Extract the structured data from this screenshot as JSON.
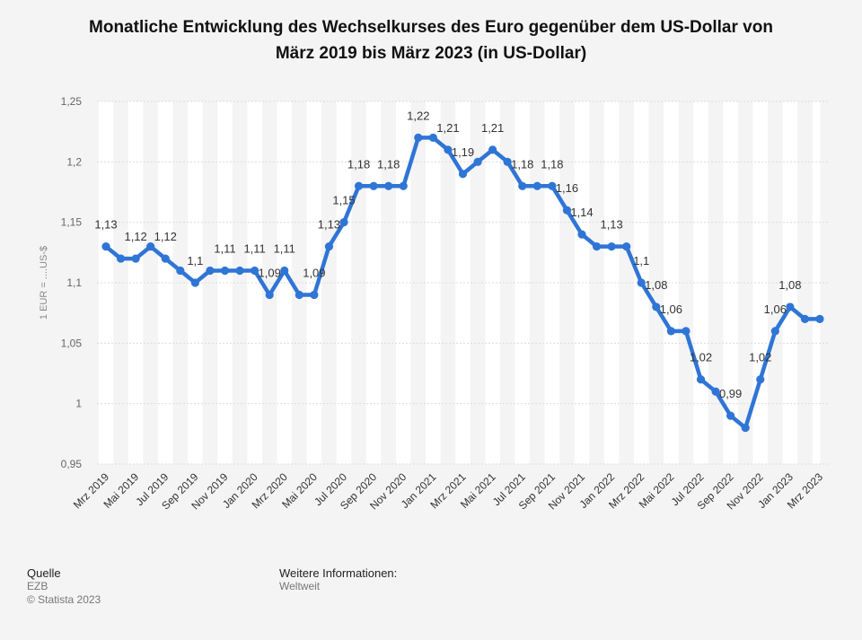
{
  "title": {
    "line1": "Monatliche Entwicklung des Wechselkurses des Euro gegenüber dem US-Dollar von",
    "line2": "März 2019 bis März 2023 (in US-Dollar)"
  },
  "footer": {
    "source_heading": "Quelle",
    "source": "EZB",
    "copyright": "© Statista 2023",
    "info_heading": "Weitere Informationen:",
    "info": "Weltweit"
  },
  "colors": {
    "line": "#2f75d6",
    "band": "#ffffff",
    "grid": "#dcdcdc"
  },
  "chart_data": {
    "type": "line",
    "ylabel": "1 EUR = ....US-$",
    "ylim": [
      0.95,
      1.25
    ],
    "yticks": [
      {
        "value": 0.95,
        "label": "0,95"
      },
      {
        "value": 1.0,
        "label": "1"
      },
      {
        "value": 1.05,
        "label": "1,05"
      },
      {
        "value": 1.1,
        "label": "1,1"
      },
      {
        "value": 1.15,
        "label": "1,15"
      },
      {
        "value": 1.2,
        "label": "1,2"
      },
      {
        "value": 1.25,
        "label": "1,25"
      }
    ],
    "x": [
      "Mrz 2019",
      "Apr 2019",
      "Mai 2019",
      "Jun 2019",
      "Jul 2019",
      "Aug 2019",
      "Sep 2019",
      "Okt 2019",
      "Nov 2019",
      "Dez 2019",
      "Jan 2020",
      "Feb 2020",
      "Mrz 2020",
      "Apr 2020",
      "Mai 2020",
      "Jun 2020",
      "Jul 2020",
      "Aug 2020",
      "Sep 2020",
      "Okt 2020",
      "Nov 2020",
      "Dez 2020",
      "Jan 2021",
      "Feb 2021",
      "Mrz 2021",
      "Apr 2021",
      "Mai 2021",
      "Jun 2021",
      "Jul 2021",
      "Aug 2021",
      "Sep 2021",
      "Okt 2021",
      "Nov 2021",
      "Dez 2021",
      "Jan 2022",
      "Feb 2022",
      "Mrz 2022",
      "Apr 2022",
      "Mai 2022",
      "Jun 2022",
      "Jul 2022",
      "Aug 2022",
      "Sep 2022",
      "Okt 2022",
      "Nov 2022",
      "Dez 2022",
      "Jan 2023",
      "Feb 2023",
      "Mrz 2023"
    ],
    "xtick_labels": [
      "Mrz 2019",
      "Mai 2019",
      "Jul 2019",
      "Sep 2019",
      "Nov 2019",
      "Jan 2020",
      "Mrz 2020",
      "Mai 2020",
      "Jul 2020",
      "Sep 2020",
      "Nov 2020",
      "Jan 2021",
      "Mrz 2021",
      "Mai 2021",
      "Jul 2021",
      "Sep 2021",
      "Nov 2021",
      "Jan 2022",
      "Mrz 2022",
      "Mai 2022",
      "Jul 2022",
      "Sep 2022",
      "Nov 2022",
      "Jan 2023",
      "Mrz 2023"
    ],
    "values": [
      1.13,
      1.12,
      1.12,
      1.13,
      1.12,
      1.11,
      1.1,
      1.11,
      1.11,
      1.11,
      1.11,
      1.09,
      1.11,
      1.09,
      1.09,
      1.13,
      1.15,
      1.18,
      1.18,
      1.18,
      1.18,
      1.22,
      1.22,
      1.21,
      1.19,
      1.2,
      1.21,
      1.2,
      1.18,
      1.18,
      1.18,
      1.16,
      1.14,
      1.13,
      1.13,
      1.13,
      1.1,
      1.08,
      1.06,
      1.06,
      1.02,
      1.01,
      0.99,
      0.98,
      1.02,
      1.06,
      1.08,
      1.07,
      1.07
    ],
    "data_labels": [
      {
        "i": 0,
        "text": "1,13"
      },
      {
        "i": 2,
        "text": "1,12"
      },
      {
        "i": 4,
        "text": "1,12"
      },
      {
        "i": 6,
        "text": "1,1"
      },
      {
        "i": 8,
        "text": "1,11"
      },
      {
        "i": 10,
        "text": "1,11"
      },
      {
        "i": 11,
        "text": "1,09"
      },
      {
        "i": 12,
        "text": "1,11"
      },
      {
        "i": 14,
        "text": "1,09"
      },
      {
        "i": 15,
        "text": "1,13"
      },
      {
        "i": 16,
        "text": "1,15"
      },
      {
        "i": 17,
        "text": "1,18"
      },
      {
        "i": 19,
        "text": "1,18"
      },
      {
        "i": 21,
        "text": "1,22"
      },
      {
        "i": 23,
        "text": "1,21"
      },
      {
        "i": 24,
        "text": "1,19"
      },
      {
        "i": 26,
        "text": "1,21"
      },
      {
        "i": 28,
        "text": "1,18"
      },
      {
        "i": 30,
        "text": "1,18"
      },
      {
        "i": 31,
        "text": "1,16"
      },
      {
        "i": 32,
        "text": "1,14"
      },
      {
        "i": 34,
        "text": "1,13"
      },
      {
        "i": 36,
        "text": "1,1"
      },
      {
        "i": 37,
        "text": "1,08"
      },
      {
        "i": 38,
        "text": "1,06"
      },
      {
        "i": 40,
        "text": "1,02"
      },
      {
        "i": 42,
        "text": "0,99"
      },
      {
        "i": 44,
        "text": "1,02"
      },
      {
        "i": 45,
        "text": "1,06"
      },
      {
        "i": 46,
        "text": "1,08"
      }
    ],
    "grid": true,
    "legend": "none"
  }
}
